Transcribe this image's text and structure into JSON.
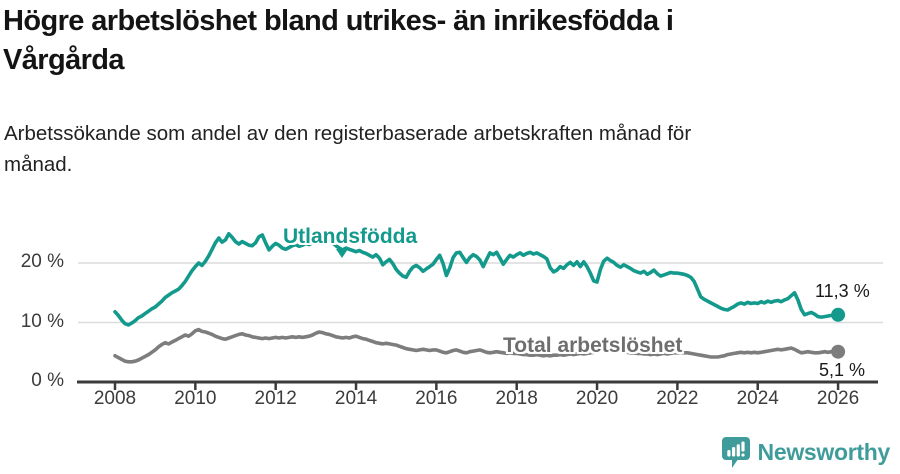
{
  "header": {
    "title_lines": [
      "Högre arbetslöshet bland utrikes- än inrikesfödda i",
      "Vårgårda"
    ],
    "subtitle_lines": [
      "Arbetssökande som andel av den registerbaserade arbetskraften månad för",
      "månad."
    ]
  },
  "chart_data": {
    "type": "line",
    "unit": "%",
    "x_start_year": 2008,
    "points_per_year": 12,
    "ylim": [
      0,
      28
    ],
    "grid": "horizontal",
    "legend_position": "inline-labels",
    "y_ticks": [
      {
        "value": 0,
        "label": "0 %"
      },
      {
        "value": 10,
        "label": "10 %"
      },
      {
        "value": 20,
        "label": "20 %"
      }
    ],
    "x_ticks": [
      {
        "value": 2008,
        "label": "2008"
      },
      {
        "value": 2010,
        "label": "2010"
      },
      {
        "value": 2012,
        "label": "2012"
      },
      {
        "value": 2014,
        "label": "2014"
      },
      {
        "value": 2016,
        "label": "2016"
      },
      {
        "value": 2018,
        "label": "2018"
      },
      {
        "value": 2020,
        "label": "2020"
      },
      {
        "value": 2022,
        "label": "2022"
      },
      {
        "value": 2024,
        "label": "2024"
      },
      {
        "value": 2026,
        "label": "2026"
      }
    ],
    "series": [
      {
        "name": "Utlandsfödda",
        "color": "#149a8c",
        "end_value": 11.3,
        "end_label": "11,3 %",
        "values": [
          11.8,
          11.2,
          10.4,
          9.8,
          9.6,
          9.9,
          10.3,
          10.8,
          11.1,
          11.5,
          11.9,
          12.3,
          12.6,
          13.1,
          13.6,
          14.2,
          14.6,
          15.0,
          15.3,
          15.6,
          16.2,
          16.9,
          17.8,
          18.7,
          19.4,
          20.0,
          19.6,
          20.3,
          21.2,
          22.3,
          23.4,
          24.2,
          23.5,
          23.9,
          24.9,
          24.3,
          23.6,
          23.2,
          23.6,
          23.3,
          23.0,
          22.9,
          23.4,
          24.4,
          24.7,
          23.4,
          22.2,
          22.8,
          23.3,
          23.0,
          22.5,
          22.3,
          22.6,
          22.9,
          23.1,
          22.8,
          23.0,
          23.3,
          23.1,
          23.4,
          23.8,
          24.2,
          24.0,
          23.6,
          23.9,
          23.4,
          22.9,
          22.5,
          22.2,
          22.5,
          22.3,
          22.1,
          21.9,
          22.1,
          21.8,
          21.6,
          21.3,
          21.0,
          21.4,
          20.8,
          19.7,
          20.2,
          20.6,
          19.9,
          18.9,
          18.3,
          17.8,
          17.6,
          18.6,
          19.3,
          19.6,
          19.2,
          18.6,
          19.0,
          19.4,
          19.8,
          20.6,
          21.3,
          19.9,
          17.9,
          19.2,
          20.9,
          21.7,
          21.8,
          20.9,
          20.1,
          20.9,
          21.4,
          21.1,
          20.5,
          19.4,
          20.6,
          21.7,
          21.4,
          21.8,
          20.8,
          19.8,
          20.6,
          21.3,
          21.0,
          21.4,
          21.7,
          21.3,
          21.6,
          21.8,
          21.5,
          21.7,
          21.4,
          21.1,
          20.7,
          19.2,
          18.5,
          18.8,
          19.4,
          19.1,
          19.7,
          20.1,
          19.6,
          20.2,
          19.4,
          20.2,
          19.4,
          18.3,
          17.0,
          16.8,
          18.9,
          20.3,
          20.8,
          20.4,
          20.1,
          19.6,
          19.3,
          19.7,
          19.4,
          19.1,
          18.7,
          18.5,
          18.3,
          18.6,
          18.1,
          18.4,
          18.8,
          18.2,
          17.8,
          18.0,
          18.2,
          18.4,
          18.3,
          18.3,
          18.2,
          18.1,
          17.9,
          17.6,
          16.9,
          15.6,
          14.3,
          13.9,
          13.6,
          13.3,
          13.0,
          12.7,
          12.4,
          12.2,
          12.1,
          12.4,
          12.7,
          13.1,
          13.3,
          13.1,
          13.4,
          13.2,
          13.3,
          13.2,
          13.5,
          13.3,
          13.6,
          13.4,
          13.6,
          13.7,
          13.5,
          13.8,
          14.0,
          14.5,
          15.0,
          13.8,
          12.2,
          11.3,
          11.5,
          11.7,
          11.4,
          11.0,
          10.9,
          11.0,
          11.1,
          11.2,
          11.2,
          11.3
        ]
      },
      {
        "name": "Total arbetslöshet",
        "color": "#7d7d7d",
        "end_value": 5.1,
        "end_label": "5,1 %",
        "values": [
          4.4,
          4.1,
          3.8,
          3.5,
          3.4,
          3.4,
          3.5,
          3.7,
          4.0,
          4.3,
          4.6,
          5.0,
          5.4,
          5.9,
          6.3,
          6.6,
          6.4,
          6.7,
          7.0,
          7.3,
          7.6,
          7.9,
          7.7,
          8.1,
          8.6,
          8.8,
          8.5,
          8.4,
          8.2,
          8.0,
          7.7,
          7.5,
          7.3,
          7.2,
          7.4,
          7.6,
          7.8,
          8.0,
          8.1,
          7.9,
          7.8,
          7.6,
          7.5,
          7.4,
          7.3,
          7.4,
          7.3,
          7.4,
          7.5,
          7.4,
          7.5,
          7.4,
          7.5,
          7.6,
          7.5,
          7.6,
          7.5,
          7.6,
          7.7,
          7.9,
          8.2,
          8.4,
          8.3,
          8.1,
          8.0,
          7.8,
          7.6,
          7.5,
          7.4,
          7.5,
          7.4,
          7.6,
          7.7,
          7.5,
          7.3,
          7.2,
          7.0,
          6.8,
          6.6,
          6.5,
          6.4,
          6.5,
          6.4,
          6.3,
          6.2,
          6.0,
          5.8,
          5.6,
          5.5,
          5.4,
          5.3,
          5.4,
          5.5,
          5.4,
          5.3,
          5.4,
          5.4,
          5.2,
          5.0,
          4.9,
          5.1,
          5.3,
          5.4,
          5.2,
          5.0,
          4.9,
          5.1,
          5.2,
          5.3,
          5.4,
          5.2,
          5.0,
          4.9,
          5.0,
          5.1,
          5.0,
          4.9,
          4.8,
          4.9,
          4.8,
          4.8,
          4.7,
          4.6,
          4.6,
          4.5,
          4.5,
          4.6,
          4.5,
          4.4,
          4.5,
          4.4,
          4.5,
          4.5,
          4.6,
          4.5,
          4.6,
          4.7,
          4.6,
          4.7,
          4.8,
          4.7,
          4.8,
          4.9,
          5.0,
          5.1,
          5.3,
          5.5,
          5.6,
          5.5,
          5.4,
          5.3,
          5.2,
          5.1,
          5.0,
          4.9,
          4.9,
          4.8,
          4.8,
          4.7,
          4.7,
          4.6,
          4.7,
          4.6,
          4.7,
          4.8,
          4.7,
          4.8,
          4.9,
          4.9,
          5.0,
          4.9,
          4.9,
          4.8,
          4.7,
          4.6,
          4.5,
          4.4,
          4.3,
          4.2,
          4.2,
          4.2,
          4.3,
          4.4,
          4.6,
          4.7,
          4.8,
          4.9,
          5.0,
          4.9,
          5.0,
          4.9,
          5.0,
          4.9,
          5.0,
          5.1,
          5.2,
          5.3,
          5.4,
          5.5,
          5.4,
          5.5,
          5.6,
          5.7,
          5.5,
          5.2,
          4.9,
          5.0,
          5.1,
          5.0,
          4.9,
          4.9,
          5.0,
          5.1,
          5.0,
          5.1,
          5.1,
          5.1
        ]
      }
    ],
    "style": {
      "gridline_color": "#dcdcdc",
      "axis_color": "#3a3a3a",
      "tick_label_color": "#3c3c3c"
    }
  },
  "footer": {
    "brand": "Newsworthy",
    "brand_color": "#3f9c9a"
  }
}
